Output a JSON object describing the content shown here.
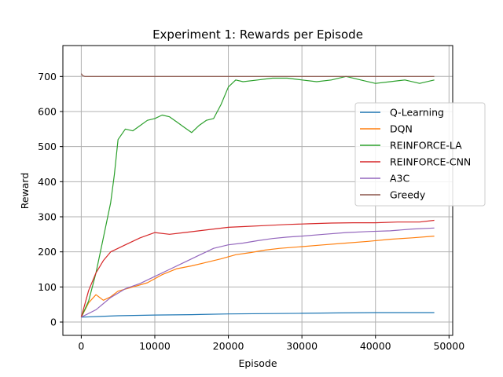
{
  "chart_data": {
    "type": "line",
    "title": "Experiment 1: Rewards per Episode",
    "xlabel": "Episode",
    "ylabel": "Reward",
    "xlim": [
      -2500,
      50500
    ],
    "ylim": [
      -38,
      788
    ],
    "xticks": [
      0,
      10000,
      20000,
      30000,
      40000,
      50000
    ],
    "yticks": [
      0,
      100,
      200,
      300,
      400,
      500,
      600,
      700
    ],
    "grid": true,
    "legend_position": "right",
    "series": [
      {
        "name": "Q-Learning",
        "color": "#1f77b4",
        "x": [
          0,
          5000,
          10000,
          15000,
          20000,
          25000,
          30000,
          35000,
          40000,
          45000,
          48000
        ],
        "values": [
          14,
          18,
          20,
          21,
          23,
          24,
          25,
          26,
          27,
          27,
          27
        ]
      },
      {
        "name": "DQN",
        "color": "#ff7f0e",
        "x": [
          0,
          1000,
          2000,
          3000,
          4000,
          5000,
          7000,
          9000,
          11000,
          13000,
          15000,
          17000,
          19000,
          21000,
          23000,
          25000,
          27000,
          30000,
          33000,
          36000,
          39000,
          42000,
          45000,
          48000
        ],
        "values": [
          14,
          55,
          78,
          62,
          72,
          88,
          100,
          112,
          135,
          152,
          160,
          170,
          180,
          192,
          198,
          205,
          210,
          215,
          220,
          225,
          230,
          236,
          240,
          245
        ]
      },
      {
        "name": "REINFORCE-LA",
        "color": "#2ca02c",
        "x": [
          0,
          1000,
          2000,
          3000,
          4000,
          4500,
          5000,
          6000,
          7000,
          8000,
          9000,
          10000,
          11000,
          12000,
          13000,
          14000,
          15000,
          16000,
          17000,
          18000,
          19000,
          20000,
          21000,
          22000,
          24000,
          26000,
          28000,
          30000,
          32000,
          34000,
          36000,
          38000,
          40000,
          42000,
          44000,
          46000,
          48000
        ],
        "values": [
          14,
          60,
          140,
          240,
          340,
          420,
          520,
          550,
          545,
          560,
          575,
          580,
          590,
          585,
          570,
          555,
          540,
          560,
          575,
          580,
          620,
          670,
          690,
          685,
          690,
          695,
          695,
          690,
          685,
          690,
          700,
          690,
          680,
          685,
          690,
          680,
          690
        ]
      },
      {
        "name": "REINFORCE-CNN",
        "color": "#d62728",
        "x": [
          0,
          1000,
          2000,
          3000,
          4000,
          5000,
          6000,
          8000,
          10000,
          12000,
          14000,
          16000,
          18000,
          20000,
          22000,
          25000,
          28000,
          31000,
          34000,
          37000,
          40000,
          43000,
          46000,
          48000
        ],
        "values": [
          14,
          90,
          140,
          175,
          200,
          210,
          220,
          240,
          255,
          250,
          255,
          260,
          265,
          270,
          272,
          275,
          278,
          280,
          282,
          283,
          283,
          285,
          285,
          290
        ]
      },
      {
        "name": "A3C",
        "color": "#9467bd",
        "x": [
          0,
          2000,
          4000,
          6000,
          8000,
          10000,
          12000,
          14000,
          16000,
          18000,
          20000,
          22000,
          24000,
          26000,
          28000,
          30000,
          33000,
          36000,
          39000,
          42000,
          45000,
          48000
        ],
        "values": [
          14,
          35,
          70,
          95,
          110,
          130,
          150,
          170,
          190,
          210,
          220,
          225,
          232,
          238,
          242,
          245,
          250,
          255,
          258,
          260,
          265,
          268
        ]
      },
      {
        "name": "Greedy",
        "color": "#8c564b",
        "x": [
          0,
          200,
          500,
          10000,
          20000,
          30000,
          40000,
          48000
        ],
        "values": [
          708,
          702,
          700,
          700,
          700,
          700,
          700,
          700
        ]
      }
    ]
  }
}
